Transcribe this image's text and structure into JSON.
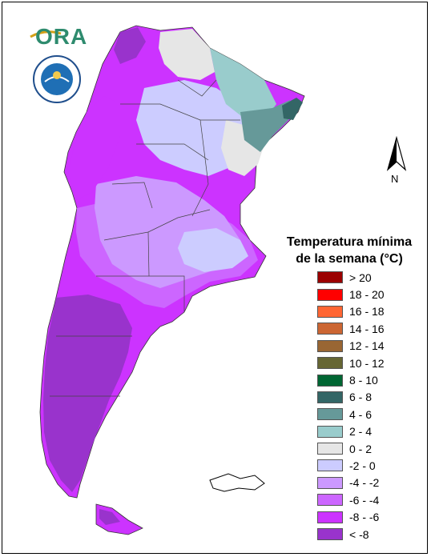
{
  "legend": {
    "title_line1": "Temperatura mínima",
    "title_line2": "de la semana (°C)",
    "items": [
      {
        "label": "> 20",
        "color": "#9b0000"
      },
      {
        "label": "18 - 20",
        "color": "#ff0000"
      },
      {
        "label": "16 - 18",
        "color": "#ff6633"
      },
      {
        "label": "14 - 16",
        "color": "#cc6633"
      },
      {
        "label": "12 - 14",
        "color": "#996633"
      },
      {
        "label": "10 - 12",
        "color": "#666633"
      },
      {
        "label": "8 - 10",
        "color": "#006633"
      },
      {
        "label": "6 - 8",
        "color": "#336666"
      },
      {
        "label": "4 - 6",
        "color": "#669999"
      },
      {
        "label": "2 - 4",
        "color": "#99cccc"
      },
      {
        "label": "0 - 2",
        "color": "#e6e6e6"
      },
      {
        "label": "-2 - 0",
        "color": "#ccccff"
      },
      {
        "label": "-4 - -2",
        "color": "#cc99ff"
      },
      {
        "label": "-6 - -4",
        "color": "#cc66ff"
      },
      {
        "label": "-8 - -6",
        "color": "#cc33ff"
      },
      {
        "label": "< -8",
        "color": "#9933cc"
      }
    ]
  },
  "logos": {
    "ora_text": "ORA"
  },
  "north_arrow": {
    "label": "N"
  }
}
